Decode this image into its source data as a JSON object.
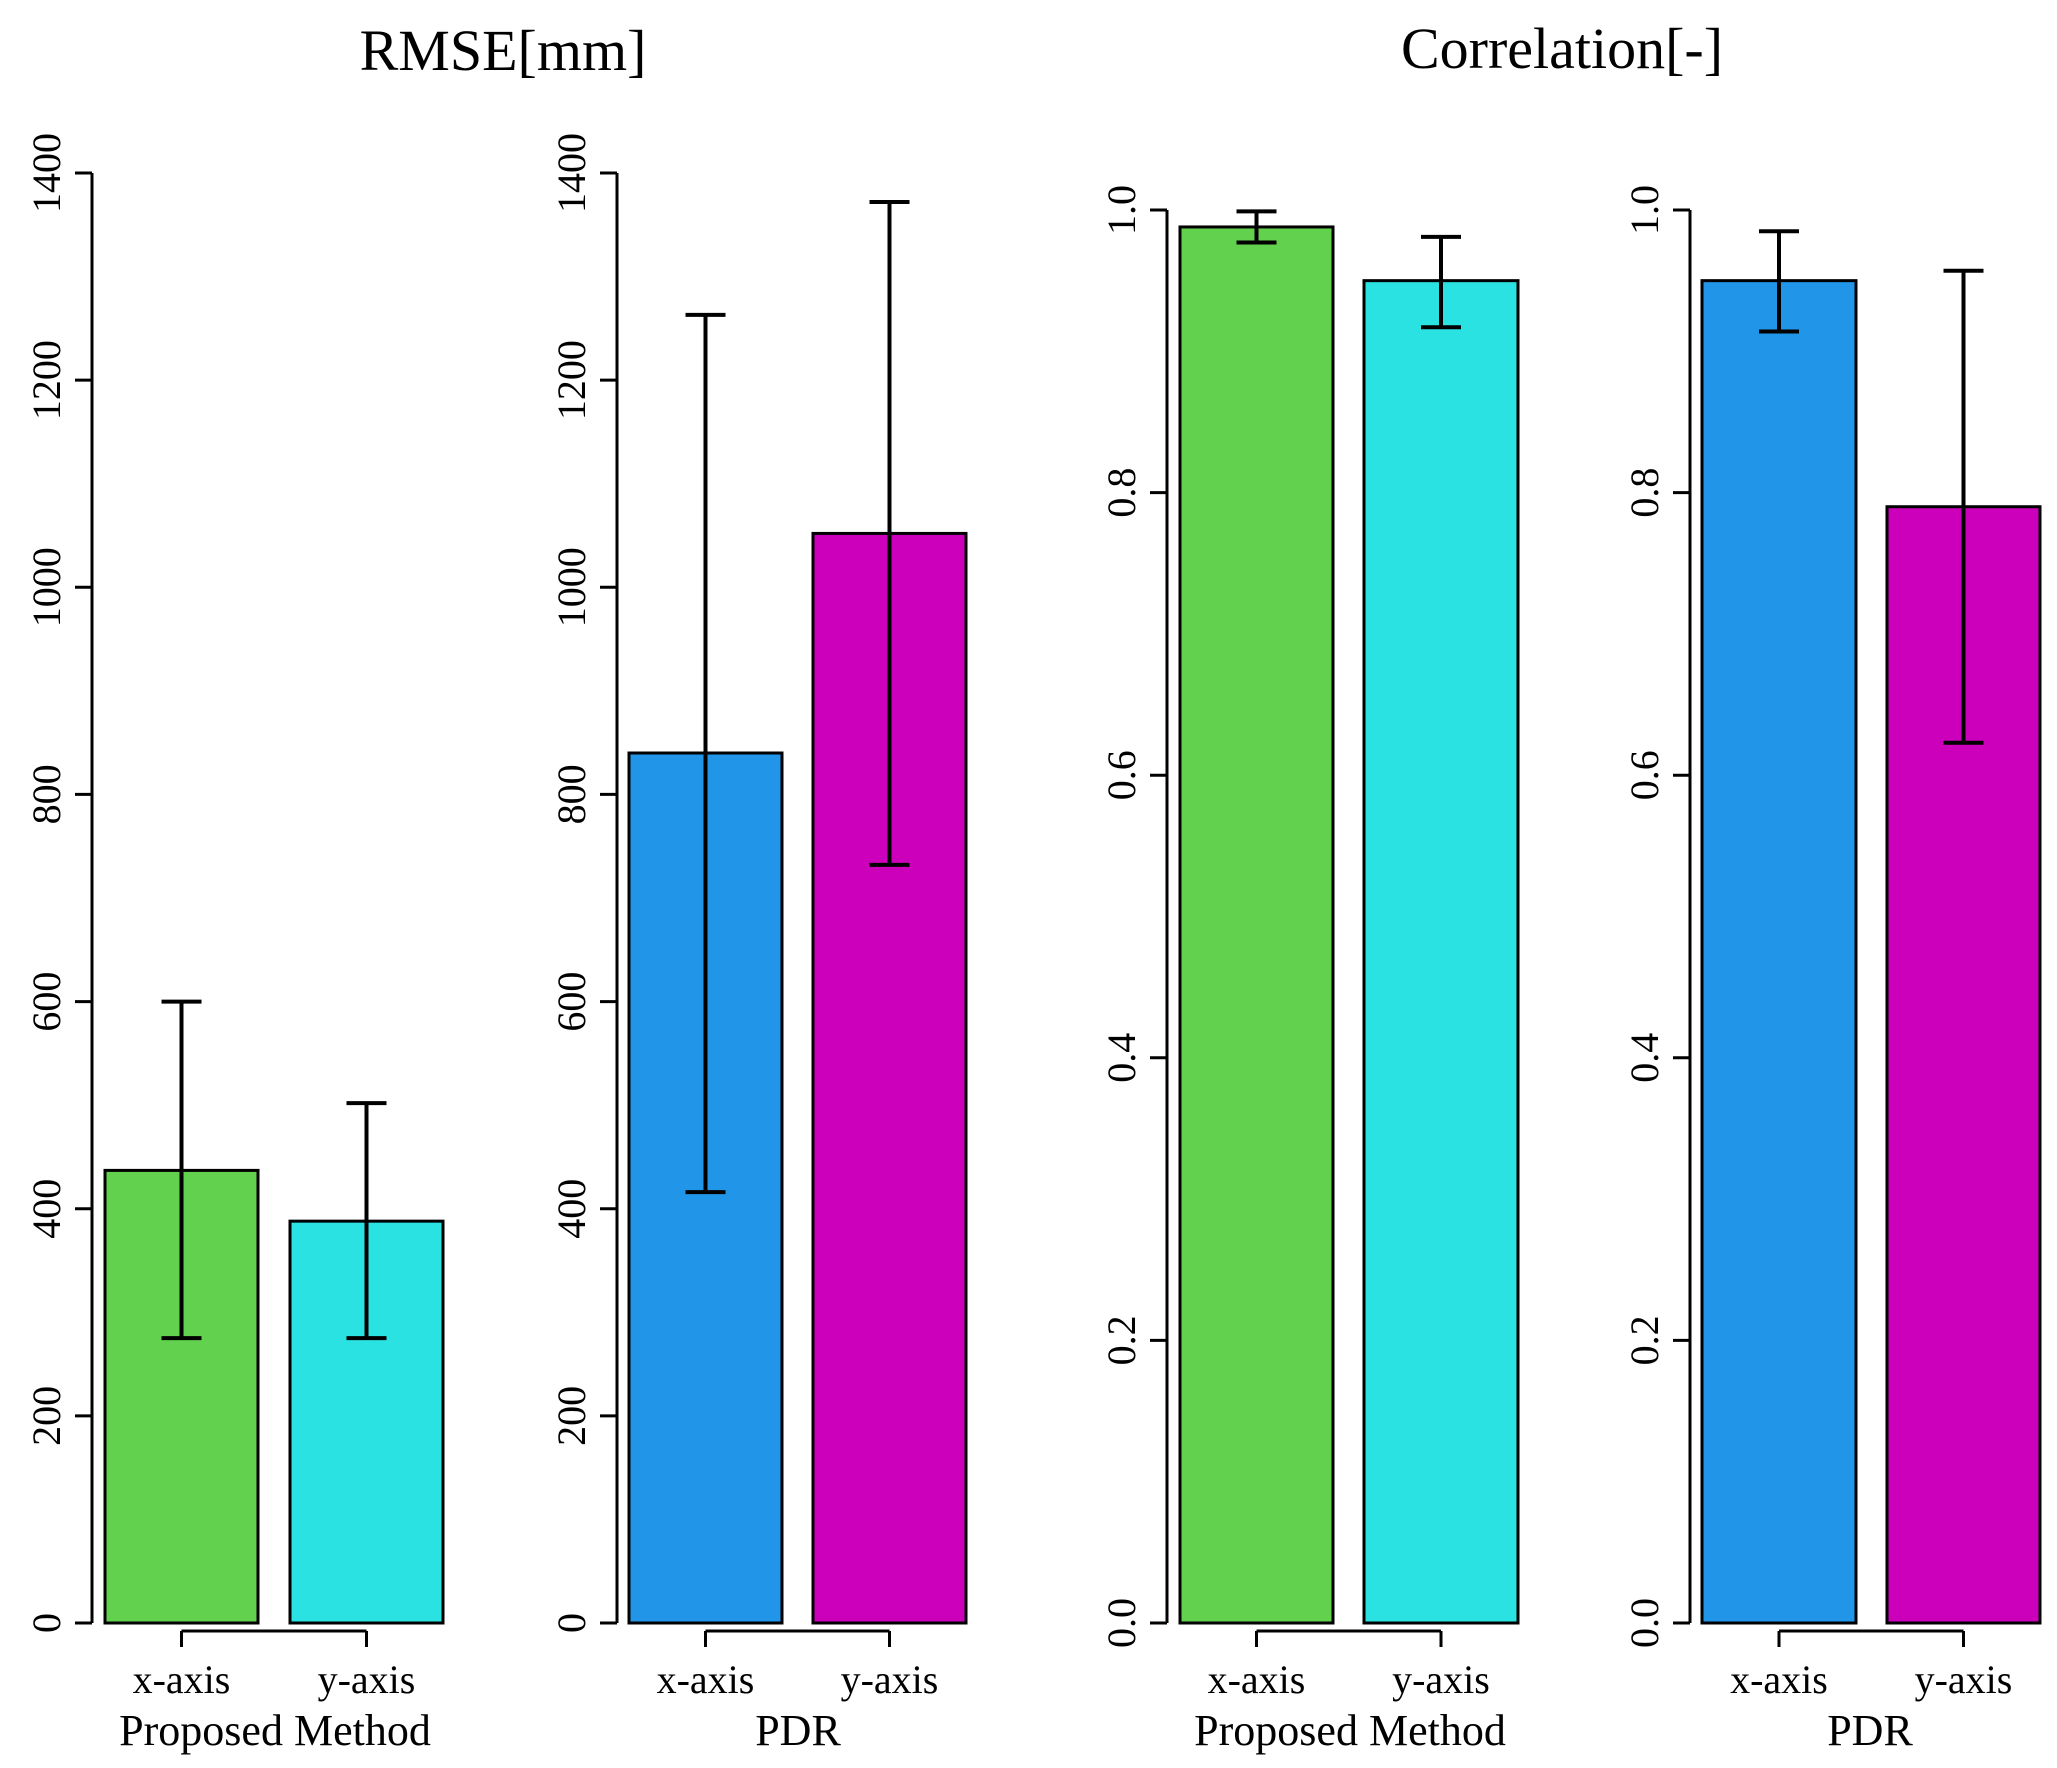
{
  "group_titles": {
    "rmse": "RMSE[mm]",
    "correlation": "Correlation[-]"
  },
  "colors": {
    "green": "#62d14e",
    "cyan": "#2ae2e2",
    "blue": "#2196e8",
    "magenta": "#cc00bb",
    "axis": "#000000"
  },
  "chart_data": [
    {
      "type": "bar",
      "id": "rmse-proposed",
      "group": "RMSE[mm]",
      "xlabel": "Proposed Method",
      "ylabel": "",
      "ylim": [
        0,
        1400
      ],
      "yticks": [
        0,
        200,
        400,
        600,
        800,
        1000,
        1200,
        1400
      ],
      "categories": [
        "x-axis",
        "y-axis"
      ],
      "values": [
        437,
        388
      ],
      "error_low": [
        275,
        275
      ],
      "error_high": [
        600,
        502
      ],
      "colors": [
        "#62d14e",
        "#2ae2e2"
      ]
    },
    {
      "type": "bar",
      "id": "rmse-pdr",
      "group": "RMSE[mm]",
      "xlabel": "PDR",
      "ylabel": "",
      "ylim": [
        0,
        1400
      ],
      "yticks": [
        0,
        200,
        400,
        600,
        800,
        1000,
        1200,
        1400
      ],
      "categories": [
        "x-axis",
        "y-axis"
      ],
      "values": [
        840,
        1052
      ],
      "error_low": [
        416,
        732
      ],
      "error_high": [
        1263,
        1372
      ],
      "colors": [
        "#2196e8",
        "#cc00bb"
      ]
    },
    {
      "type": "bar",
      "id": "corr-proposed",
      "group": "Correlation[-]",
      "xlabel": "Proposed Method",
      "ylabel": "",
      "ylim": [
        0.0,
        1.0
      ],
      "yticks": [
        "0.0",
        "0.2",
        "0.4",
        "0.6",
        "0.8",
        "1.0"
      ],
      "categories": [
        "x-axis",
        "y-axis"
      ],
      "values": [
        0.988,
        0.95
      ],
      "error_low": [
        0.977,
        0.917
      ],
      "error_high": [
        0.999,
        0.981
      ],
      "colors": [
        "#62d14e",
        "#2ae2e2"
      ]
    },
    {
      "type": "bar",
      "id": "corr-pdr",
      "group": "Correlation[-]",
      "xlabel": "PDR",
      "ylabel": "",
      "ylim": [
        0.0,
        1.0
      ],
      "yticks": [
        "0.0",
        "0.2",
        "0.4",
        "0.6",
        "0.8",
        "1.0"
      ],
      "categories": [
        "x-axis",
        "y-axis"
      ],
      "values": [
        0.95,
        0.79
      ],
      "error_low": [
        0.914,
        0.623
      ],
      "error_high": [
        0.985,
        0.957
      ],
      "colors": [
        "#2196e8",
        "#cc00bb"
      ]
    }
  ]
}
